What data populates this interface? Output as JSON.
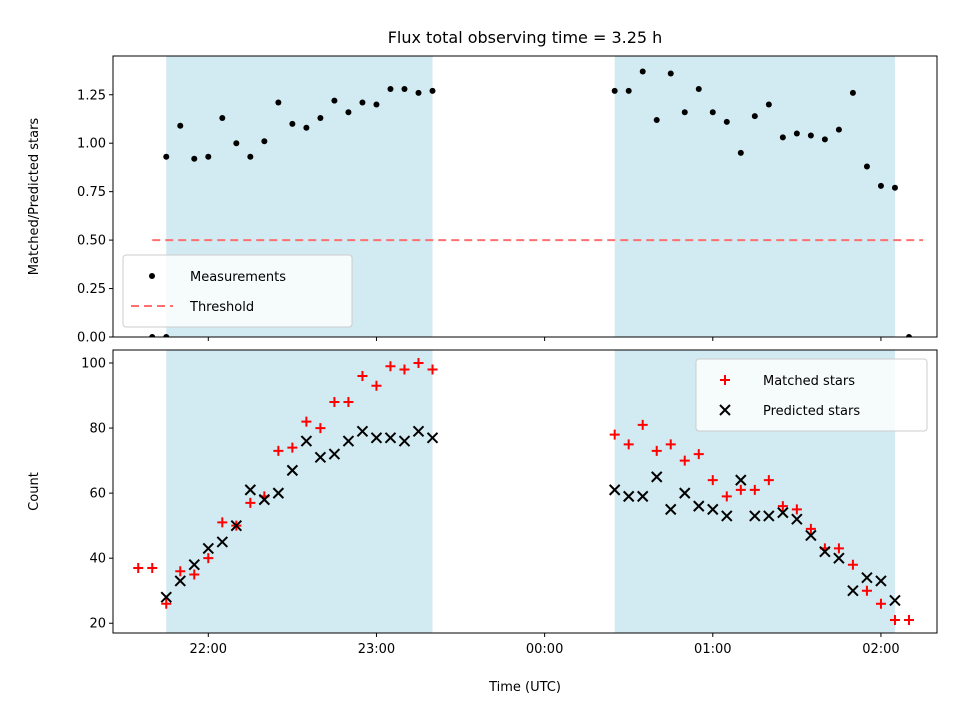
{
  "title": "Flux total observing time = 3.25 h",
  "xlabel": "Time (UTC)",
  "colors": {
    "shade": "#add8e6",
    "measure": "#000000",
    "threshold": "#ff7070",
    "matched": "#ff0000",
    "predicted": "#000000"
  },
  "chart_data": [
    {
      "type": "scatter",
      "ylabel": "Matched/Predicted stars",
      "ylim": [
        0,
        1.45
      ],
      "yticks": [
        0.0,
        0.25,
        0.5,
        0.75,
        1.0,
        1.25
      ],
      "ytick_labels": [
        "0.00",
        "0.25",
        "0.50",
        "0.75",
        "1.00",
        "1.25"
      ],
      "xlim": [
        "21:26",
        "02:20"
      ],
      "xticks": [
        "22:00",
        "23:00",
        "00:00",
        "01:00",
        "02:00"
      ],
      "xtick_labels": [
        "",
        "",
        "",
        "",
        ""
      ],
      "shaded_intervals": [
        [
          "21:45",
          "23:20"
        ],
        [
          "00:25",
          "02:05"
        ]
      ],
      "legend_position": "lower-left",
      "threshold": {
        "name": "Threshold",
        "value": 0.5,
        "x_range": [
          "21:40",
          "02:15"
        ]
      },
      "series": [
        {
          "name": "Measurements",
          "points": [
            [
              "21:40",
              0.0
            ],
            [
              "21:45",
              0.0
            ],
            [
              "21:45",
              0.93
            ],
            [
              "21:50",
              1.09
            ],
            [
              "21:55",
              0.92
            ],
            [
              "22:00",
              0.93
            ],
            [
              "22:05",
              1.13
            ],
            [
              "22:10",
              1.0
            ],
            [
              "22:15",
              0.93
            ],
            [
              "22:20",
              1.01
            ],
            [
              "22:25",
              1.21
            ],
            [
              "22:30",
              1.1
            ],
            [
              "22:35",
              1.08
            ],
            [
              "22:40",
              1.13
            ],
            [
              "22:45",
              1.22
            ],
            [
              "22:50",
              1.16
            ],
            [
              "22:55",
              1.21
            ],
            [
              "23:00",
              1.2
            ],
            [
              "23:05",
              1.28
            ],
            [
              "23:10",
              1.28
            ],
            [
              "23:15",
              1.26
            ],
            [
              "23:20",
              1.27
            ],
            [
              "00:25",
              1.27
            ],
            [
              "00:30",
              1.27
            ],
            [
              "00:35",
              1.37
            ],
            [
              "00:40",
              1.12
            ],
            [
              "00:45",
              1.36
            ],
            [
              "00:50",
              1.16
            ],
            [
              "00:55",
              1.28
            ],
            [
              "01:00",
              1.16
            ],
            [
              "01:05",
              1.11
            ],
            [
              "01:10",
              0.95
            ],
            [
              "01:15",
              1.14
            ],
            [
              "01:20",
              1.2
            ],
            [
              "01:25",
              1.03
            ],
            [
              "01:30",
              1.05
            ],
            [
              "01:35",
              1.04
            ],
            [
              "01:40",
              1.02
            ],
            [
              "01:45",
              1.07
            ],
            [
              "01:50",
              1.26
            ],
            [
              "01:55",
              0.88
            ],
            [
              "02:00",
              0.78
            ],
            [
              "02:05",
              0.77
            ],
            [
              "02:10",
              0.0
            ]
          ]
        }
      ]
    },
    {
      "type": "scatter",
      "ylabel": "Count",
      "ylim": [
        17,
        104
      ],
      "yticks": [
        20,
        40,
        60,
        80,
        100
      ],
      "ytick_labels": [
        "20",
        "40",
        "60",
        "80",
        "100"
      ],
      "xlim": [
        "21:26",
        "02:20"
      ],
      "xticks": [
        "22:00",
        "23:00",
        "00:00",
        "01:00",
        "02:00"
      ],
      "xtick_labels": [
        "22:00",
        "23:00",
        "00:00",
        "01:00",
        "02:00"
      ],
      "shaded_intervals": [
        [
          "21:45",
          "23:20"
        ],
        [
          "00:25",
          "02:05"
        ]
      ],
      "legend_position": "upper-right",
      "series": [
        {
          "name": "Matched stars",
          "marker": "+",
          "points": [
            [
              "21:35",
              37
            ],
            [
              "21:40",
              37
            ],
            [
              "21:45",
              26
            ],
            [
              "21:50",
              36
            ],
            [
              "21:55",
              35
            ],
            [
              "22:00",
              40
            ],
            [
              "22:05",
              51
            ],
            [
              "22:10",
              50
            ],
            [
              "22:15",
              57
            ],
            [
              "22:20",
              59
            ],
            [
              "22:25",
              73
            ],
            [
              "22:30",
              74
            ],
            [
              "22:35",
              82
            ],
            [
              "22:40",
              80
            ],
            [
              "22:45",
              88
            ],
            [
              "22:50",
              88
            ],
            [
              "22:55",
              96
            ],
            [
              "23:00",
              93
            ],
            [
              "23:05",
              99
            ],
            [
              "23:10",
              98
            ],
            [
              "23:15",
              100
            ],
            [
              "23:20",
              98
            ],
            [
              "00:25",
              78
            ],
            [
              "00:30",
              75
            ],
            [
              "00:35",
              81
            ],
            [
              "00:40",
              73
            ],
            [
              "00:45",
              75
            ],
            [
              "00:50",
              70
            ],
            [
              "00:55",
              72
            ],
            [
              "01:00",
              64
            ],
            [
              "01:05",
              59
            ],
            [
              "01:10",
              61
            ],
            [
              "01:15",
              61
            ],
            [
              "01:20",
              64
            ],
            [
              "01:25",
              56
            ],
            [
              "01:30",
              55
            ],
            [
              "01:35",
              49
            ],
            [
              "01:40",
              43
            ],
            [
              "01:45",
              43
            ],
            [
              "01:50",
              38
            ],
            [
              "01:55",
              30
            ],
            [
              "02:00",
              26
            ],
            [
              "02:05",
              21
            ],
            [
              "02:10",
              21
            ]
          ]
        },
        {
          "name": "Predicted stars",
          "marker": "x",
          "points": [
            [
              "21:45",
              28
            ],
            [
              "21:50",
              33
            ],
            [
              "21:55",
              38
            ],
            [
              "22:00",
              43
            ],
            [
              "22:05",
              45
            ],
            [
              "22:10",
              50
            ],
            [
              "22:15",
              61
            ],
            [
              "22:20",
              58
            ],
            [
              "22:25",
              60
            ],
            [
              "22:30",
              67
            ],
            [
              "22:35",
              76
            ],
            [
              "22:40",
              71
            ],
            [
              "22:45",
              72
            ],
            [
              "22:50",
              76
            ],
            [
              "22:55",
              79
            ],
            [
              "23:00",
              77
            ],
            [
              "23:05",
              77
            ],
            [
              "23:10",
              76
            ],
            [
              "23:15",
              79
            ],
            [
              "23:20",
              77
            ],
            [
              "00:25",
              61
            ],
            [
              "00:30",
              59
            ],
            [
              "00:35",
              59
            ],
            [
              "00:40",
              65
            ],
            [
              "00:45",
              55
            ],
            [
              "00:50",
              60
            ],
            [
              "00:55",
              56
            ],
            [
              "01:00",
              55
            ],
            [
              "01:05",
              53
            ],
            [
              "01:10",
              64
            ],
            [
              "01:15",
              53
            ],
            [
              "01:20",
              53
            ],
            [
              "01:25",
              54
            ],
            [
              "01:30",
              52
            ],
            [
              "01:35",
              47
            ],
            [
              "01:40",
              42
            ],
            [
              "01:45",
              40
            ],
            [
              "01:50",
              30
            ],
            [
              "01:55",
              34
            ],
            [
              "02:00",
              33
            ],
            [
              "02:05",
              27
            ]
          ]
        }
      ]
    }
  ]
}
